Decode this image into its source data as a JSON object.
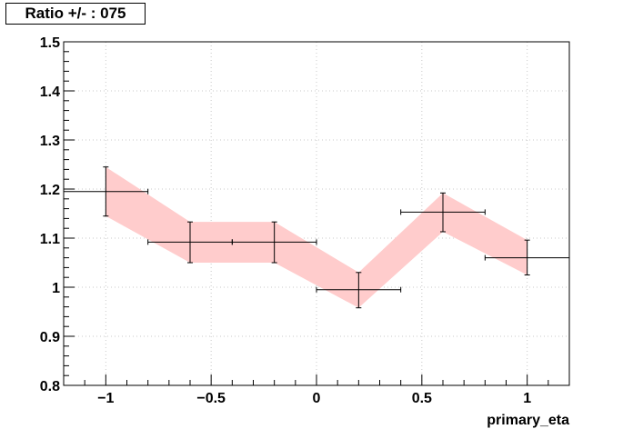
{
  "chart_data": {
    "type": "scatter",
    "title": "Ratio +/- : 075",
    "xlabel": "primary_eta",
    "ylabel": "",
    "xlim": [
      -1.2,
      1.2
    ],
    "ylim": [
      0.8,
      1.5
    ],
    "grid": true,
    "x_ticks": [
      -1,
      -0.5,
      0,
      0.5,
      1
    ],
    "x_tick_labels": [
      "−1",
      "−0.5",
      "0",
      "0.5",
      "1"
    ],
    "y_ticks": [
      0.8,
      0.9,
      1.0,
      1.1,
      1.2,
      1.3,
      1.4,
      1.5
    ],
    "y_tick_labels": [
      "0.8",
      "0.9",
      "1",
      "1.1",
      "1.2",
      "1.3",
      "1.4",
      "1.5"
    ],
    "band_color": "#ffcccc",
    "points": [
      {
        "x": -1.0,
        "xerr": 0.2,
        "y": 1.195,
        "ylo": 1.145,
        "yhi": 1.245
      },
      {
        "x": -0.6,
        "xerr": 0.2,
        "y": 1.092,
        "ylo": 1.05,
        "yhi": 1.133
      },
      {
        "x": -0.2,
        "xerr": 0.2,
        "y": 1.092,
        "ylo": 1.05,
        "yhi": 1.133
      },
      {
        "x": 0.2,
        "xerr": 0.2,
        "y": 0.995,
        "ylo": 0.958,
        "yhi": 1.03
      },
      {
        "x": 0.6,
        "xerr": 0.2,
        "y": 1.153,
        "ylo": 1.113,
        "yhi": 1.192
      },
      {
        "x": 1.0,
        "xerr": 0.2,
        "y": 1.06,
        "ylo": 1.025,
        "yhi": 1.096
      }
    ]
  }
}
